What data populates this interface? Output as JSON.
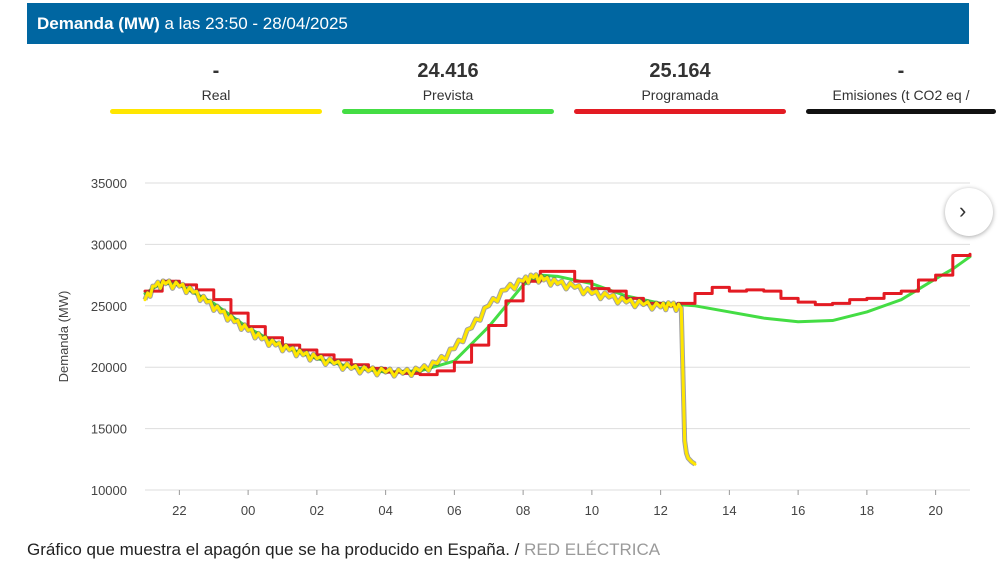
{
  "header": {
    "title_bold": "Demanda (MW)",
    "title_rest": " a las 23:50 - 28/04/2025"
  },
  "stats": [
    {
      "value": "-",
      "label": "Real",
      "color": "#ffe600"
    },
    {
      "value": "24.416",
      "label": "Prevista",
      "color": "#44dd44"
    },
    {
      "value": "25.164",
      "label": "Programada",
      "color": "#e31b23"
    },
    {
      "value": "-",
      "label": "Emisiones (t CO2 eq /",
      "color": "#111111"
    }
  ],
  "scroll_icon": "scroll-right-icon",
  "chart_data": {
    "type": "line",
    "ylabel": "Demanda (MW)",
    "ylim": [
      10000,
      35000
    ],
    "yticks": [
      10000,
      15000,
      20000,
      25000,
      30000,
      35000
    ],
    "xticks": [
      "22",
      "00",
      "02",
      "04",
      "06",
      "08",
      "10",
      "12",
      "14",
      "16",
      "18",
      "20"
    ],
    "xtick_hours": [
      22,
      24,
      26,
      28,
      30,
      32,
      34,
      36,
      38,
      40,
      42,
      44
    ],
    "xlim_hours": [
      21,
      45
    ],
    "series": [
      {
        "name": "Real",
        "color": "#ffe600",
        "style": "jagged",
        "x": [
          21.0,
          21.3,
          21.6,
          22.0,
          22.4,
          22.8,
          23.2,
          23.6,
          24.0,
          24.4,
          24.8,
          25.2,
          25.6,
          26.0,
          26.5,
          27.0,
          27.5,
          28.0,
          28.5,
          29.0,
          29.5,
          30.0,
          30.5,
          31.0,
          31.5,
          32.0,
          32.3,
          32.6,
          33.0,
          33.5,
          34.0,
          34.5,
          35.0,
          35.5,
          36.0,
          36.3,
          36.6,
          36.7,
          36.75,
          36.8,
          36.9,
          37.0
        ],
        "y": [
          25500,
          26600,
          26800,
          26600,
          26100,
          25300,
          24500,
          23700,
          23000,
          22300,
          21800,
          21400,
          21000,
          20700,
          20300,
          19900,
          19700,
          19600,
          19500,
          19700,
          20300,
          21500,
          23200,
          25000,
          26300,
          27000,
          27300,
          27100,
          26800,
          26500,
          26000,
          25700,
          25300,
          25100,
          24900,
          25000,
          24800,
          14000,
          13000,
          12600,
          12300,
          12100
        ]
      },
      {
        "name": "Prevista",
        "color": "#44dd44",
        "style": "smooth",
        "x": [
          21.0,
          21.5,
          22.0,
          23.0,
          24.0,
          25.0,
          26.0,
          27.0,
          28.0,
          29.0,
          30.0,
          31.0,
          32.0,
          32.5,
          33.0,
          34.0,
          35.0,
          36.0,
          37.0,
          38.0,
          39.0,
          40.0,
          41.0,
          42.0,
          43.0,
          44.0,
          44.5,
          45.0
        ],
        "y": [
          26000,
          26900,
          26700,
          25200,
          23200,
          21700,
          20700,
          20000,
          19600,
          19700,
          20500,
          23300,
          26700,
          27500,
          27400,
          26800,
          25800,
          25200,
          25000,
          24500,
          24000,
          23700,
          23800,
          24500,
          25500,
          27200,
          28000,
          29000
        ]
      },
      {
        "name": "Programada",
        "color": "#e31b23",
        "style": "step",
        "x": [
          21.0,
          21.5,
          22.0,
          22.5,
          23.0,
          23.5,
          24.0,
          24.5,
          25.0,
          25.5,
          26.0,
          26.5,
          27.0,
          27.5,
          28.0,
          28.5,
          29.0,
          29.5,
          30.0,
          30.5,
          31.0,
          31.5,
          32.0,
          32.5,
          33.0,
          33.5,
          34.0,
          34.5,
          35.0,
          35.5,
          36.0,
          36.5,
          37.0,
          37.5,
          38.0,
          38.5,
          39.0,
          39.5,
          40.0,
          40.5,
          41.0,
          41.5,
          42.0,
          42.5,
          43.0,
          43.5,
          44.0,
          44.5,
          45.0
        ],
        "y": [
          26200,
          27000,
          26700,
          26300,
          25500,
          24400,
          23300,
          22400,
          21800,
          21400,
          21000,
          20600,
          20200,
          19900,
          19600,
          19500,
          19400,
          19700,
          20400,
          21800,
          23400,
          25400,
          27000,
          27800,
          27800,
          27000,
          26400,
          26200,
          25600,
          25200,
          25000,
          25200,
          26000,
          26500,
          26200,
          26300,
          26200,
          25600,
          25300,
          25100,
          25200,
          25500,
          25600,
          26000,
          26200,
          27100,
          27500,
          29100,
          29200
        ]
      }
    ]
  },
  "caption": {
    "text": "Gráfico que muestra el apagón que se ha producido en España. / ",
    "source": "RED ELÉCTRICA"
  }
}
